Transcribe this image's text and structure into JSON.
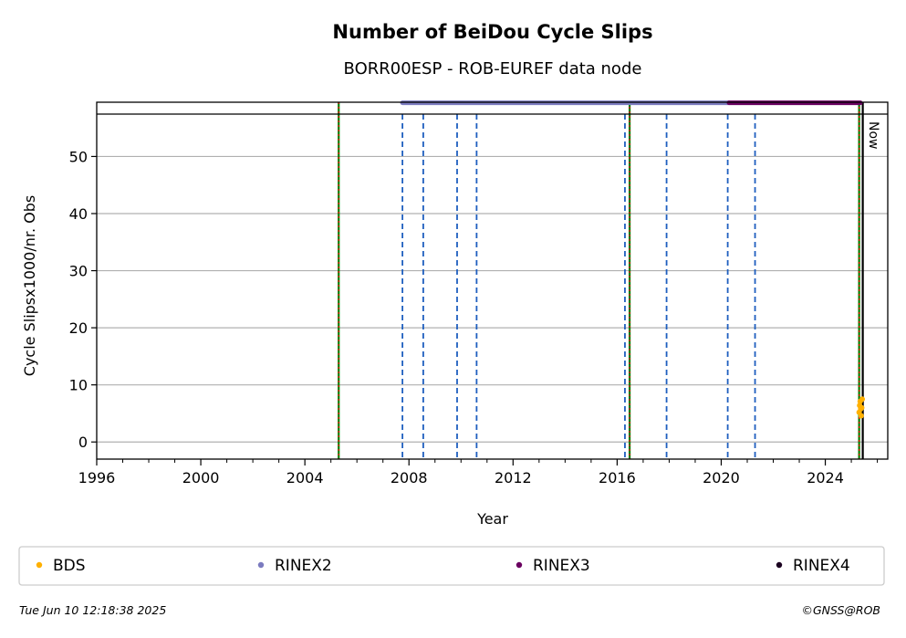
{
  "chart_data": {
    "type": "scatter",
    "title": "Number of BeiDou Cycle Slips",
    "subtitle": "BORR00ESP - ROB-EUREF data node",
    "xlabel": "Year",
    "ylabel": "Cycle Slipsx1000/nr. Obs",
    "xlim": [
      1996.0,
      2026.4
    ],
    "ylim": [
      -3,
      59.5
    ],
    "x_ticks": [
      1996,
      2000,
      2004,
      2008,
      2012,
      2016,
      2020,
      2024
    ],
    "x_tick_labels": [
      "1996",
      "2000",
      "2004",
      "2008",
      "2012",
      "2016",
      "2020",
      "2024"
    ],
    "y_ticks": [
      0,
      10,
      20,
      30,
      40,
      50
    ],
    "y_tick_labels": [
      "0",
      "10",
      "20",
      "30",
      "40",
      "50"
    ],
    "grid": "y",
    "now_label": "Now",
    "now_date": 2025.44,
    "equipment_change_lines": [
      2007.75,
      2008.55,
      2009.85,
      2010.6,
      2016.3,
      2017.9,
      2020.25,
      2021.3
    ],
    "antenna_change_lines": [
      2005.3,
      2016.48,
      2025.3
    ],
    "series": [
      {
        "name": "BDS",
        "color": "#ffb000",
        "x": [
          2025.3,
          2025.32,
          2025.34,
          2025.36,
          2025.38,
          2025.4,
          2025.42
        ],
        "y": [
          5.2,
          6.4,
          7.1,
          5.8,
          4.6,
          6.0,
          7.5
        ]
      },
      {
        "name": "RINEX2",
        "color": "#7b7bbf",
        "x_range": [
          2007.75,
          2020.3
        ],
        "y": 59.4
      },
      {
        "name": "RINEX3",
        "color": "#6a0060",
        "x_range": [
          2020.3,
          2025.35
        ],
        "y": 59.4
      },
      {
        "name": "RINEX4",
        "color": "#1a0020",
        "x_range": [],
        "y": 59.4
      }
    ]
  },
  "footer": {
    "timestamp": "Tue Jun 10 12:18:38 2025",
    "copyright": "©GNSS@ROB"
  },
  "colors": {
    "equipment_line": "#1f5fbf",
    "antenna_line_green": "#008000",
    "antenna_line_red": "#ff0000",
    "grid": "#b0b0b0"
  }
}
